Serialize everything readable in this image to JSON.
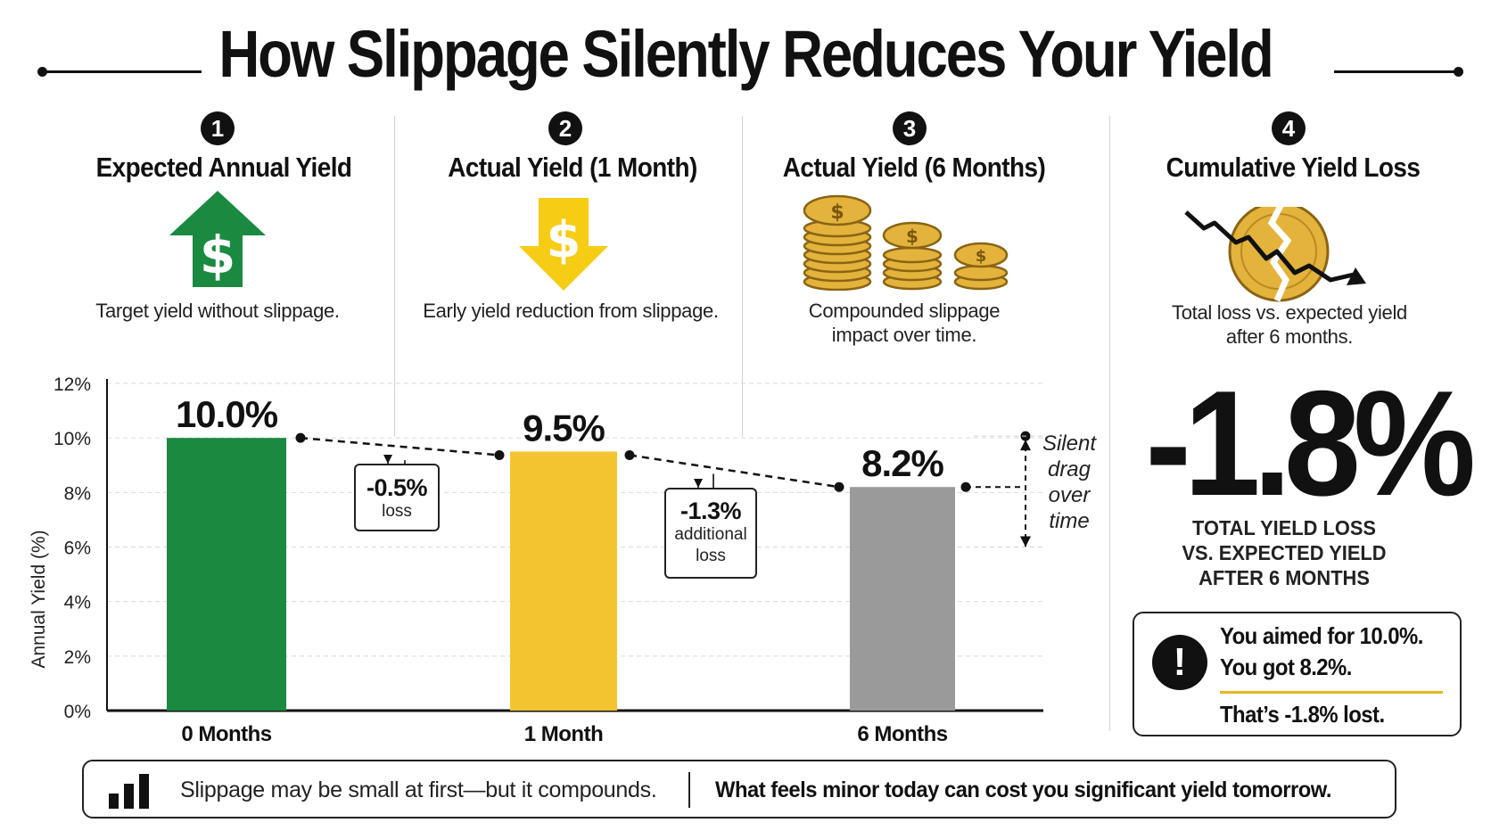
{
  "title": "How Slippage Silently Reduces Your Yield",
  "steps": [
    {
      "num": "1",
      "heading": "Expected Annual Yield",
      "desc": "Target yield without slippage.",
      "icon": "green-up-arrow-dollar-icon"
    },
    {
      "num": "2",
      "heading": "Actual Yield (1 Month)",
      "desc": "Early yield reduction from slippage.",
      "icon": "yellow-down-arrow-dollar-icon"
    },
    {
      "num": "3",
      "heading": "Actual Yield (6 Months)",
      "desc_line1": "Compounded slippage",
      "desc_line2": "impact over time.",
      "icon": "coin-stacks-icon"
    },
    {
      "num": "4",
      "heading": "Cumulative Yield Loss",
      "desc_line1": "Total loss vs. expected yield",
      "desc_line2": "after 6 months.",
      "icon": "broken-coin-decline-icon"
    }
  ],
  "chart_data": {
    "type": "bar",
    "categories": [
      "0 Months",
      "1 Month",
      "6 Months"
    ],
    "values": [
      10.0,
      9.5,
      8.2
    ],
    "value_labels": [
      "10.0%",
      "9.5%",
      "8.2%"
    ],
    "colors": [
      "#1a8a40",
      "#f4c430",
      "#9a9a9a"
    ],
    "ylabel": "Annual Yield (%)",
    "ylim": [
      0,
      12
    ],
    "yticks": [
      "0%",
      "2%",
      "4%",
      "6%",
      "8%",
      "10%",
      "12%"
    ],
    "grid": true,
    "trend_line": "dashed",
    "annotations": [
      {
        "big": "-0.5%",
        "small_line1": "loss"
      },
      {
        "big": "-1.3%",
        "small_line1": "additional",
        "small_line2": "loss"
      }
    ],
    "drag_label": [
      "Silent",
      "drag",
      "over",
      "time"
    ]
  },
  "summary": {
    "big_value": "-1.8%",
    "caption_line1": "TOTAL YIELD LOSS",
    "caption_line2": "VS. EXPECTED YIELD",
    "caption_line3": "AFTER 6 MONTHS",
    "callout_line1": "You aimed for 10.0%.",
    "callout_line2": "You got 8.2%.",
    "callout_line3": "That’s -1.8% lost."
  },
  "footer": {
    "left_text": "Slippage may be small at first—but it compounds.",
    "right_text": "What feels minor today can cost you significant yield tomorrow."
  }
}
